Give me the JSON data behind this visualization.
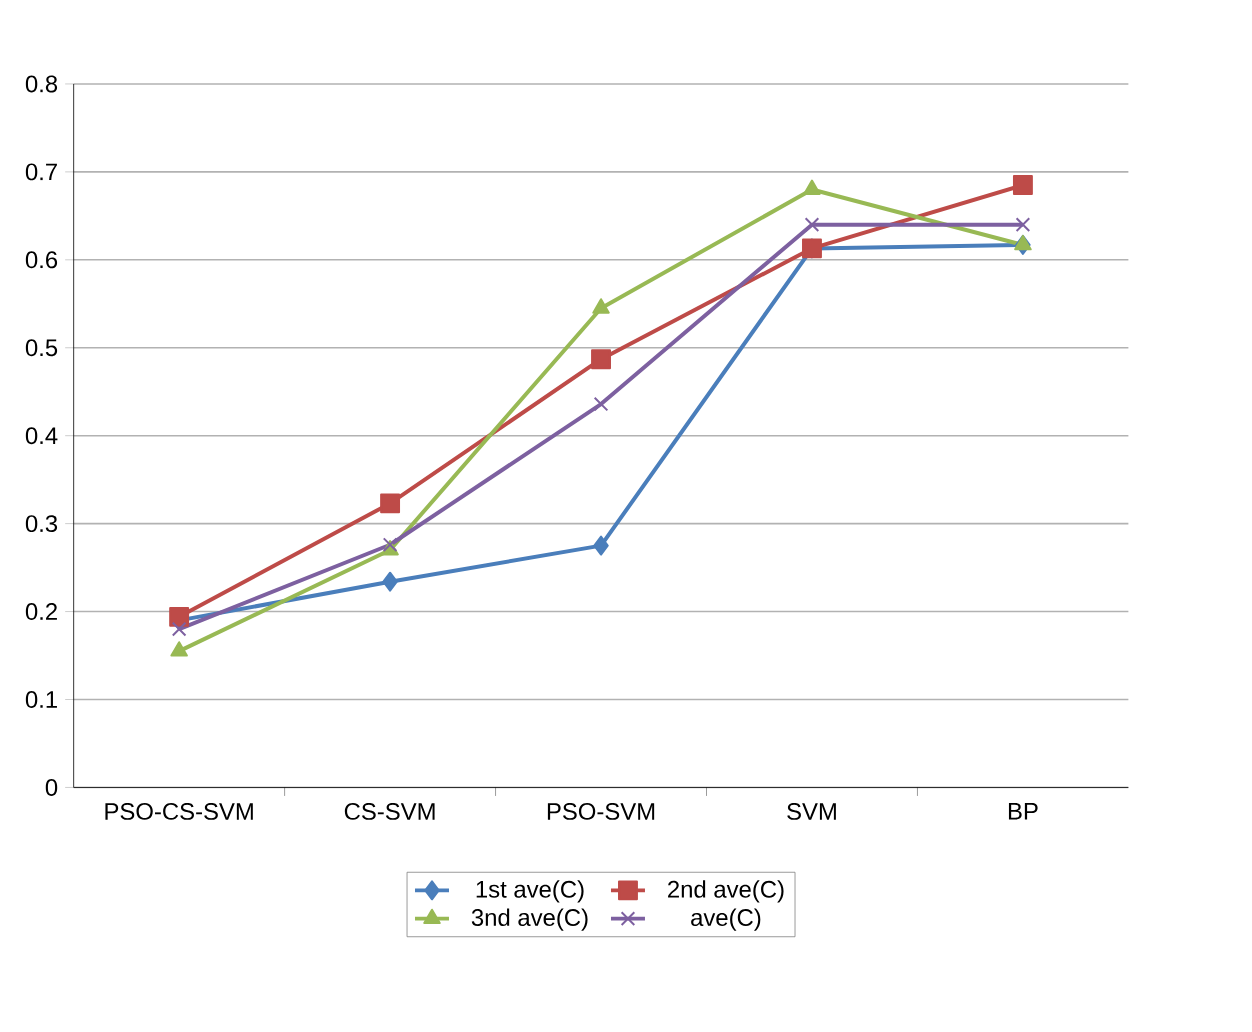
{
  "chart_data": {
    "type": "line",
    "categories": [
      "PSO-CS-SVM",
      "CS-SVM",
      "PSO-SVM",
      "SVM",
      "BP"
    ],
    "series": [
      {
        "name": "1st ave(C)",
        "color": "#4a7ebb",
        "marker": "diamond",
        "values": [
          0.19,
          0.234,
          0.275,
          0.613,
          0.617
        ]
      },
      {
        "name": "2nd ave(C)",
        "color": "#be4b48",
        "marker": "square",
        "values": [
          0.194,
          0.323,
          0.487,
          0.613,
          0.685
        ]
      },
      {
        "name": "3nd ave(C)",
        "color": "#98b954",
        "marker": "triangle",
        "values": [
          0.155,
          0.27,
          0.545,
          0.68,
          0.617
        ]
      },
      {
        "name": "ave(C)",
        "color": "#7d60a0",
        "marker": "cross",
        "values": [
          0.18,
          0.276,
          0.436,
          0.64,
          0.64
        ]
      }
    ],
    "ylim": [
      0,
      0.8
    ],
    "yticks": [
      0,
      0.1,
      0.2,
      0.3,
      0.4,
      0.5,
      0.6,
      0.7,
      0.8
    ],
    "grid": "y",
    "legend": "bottom"
  }
}
